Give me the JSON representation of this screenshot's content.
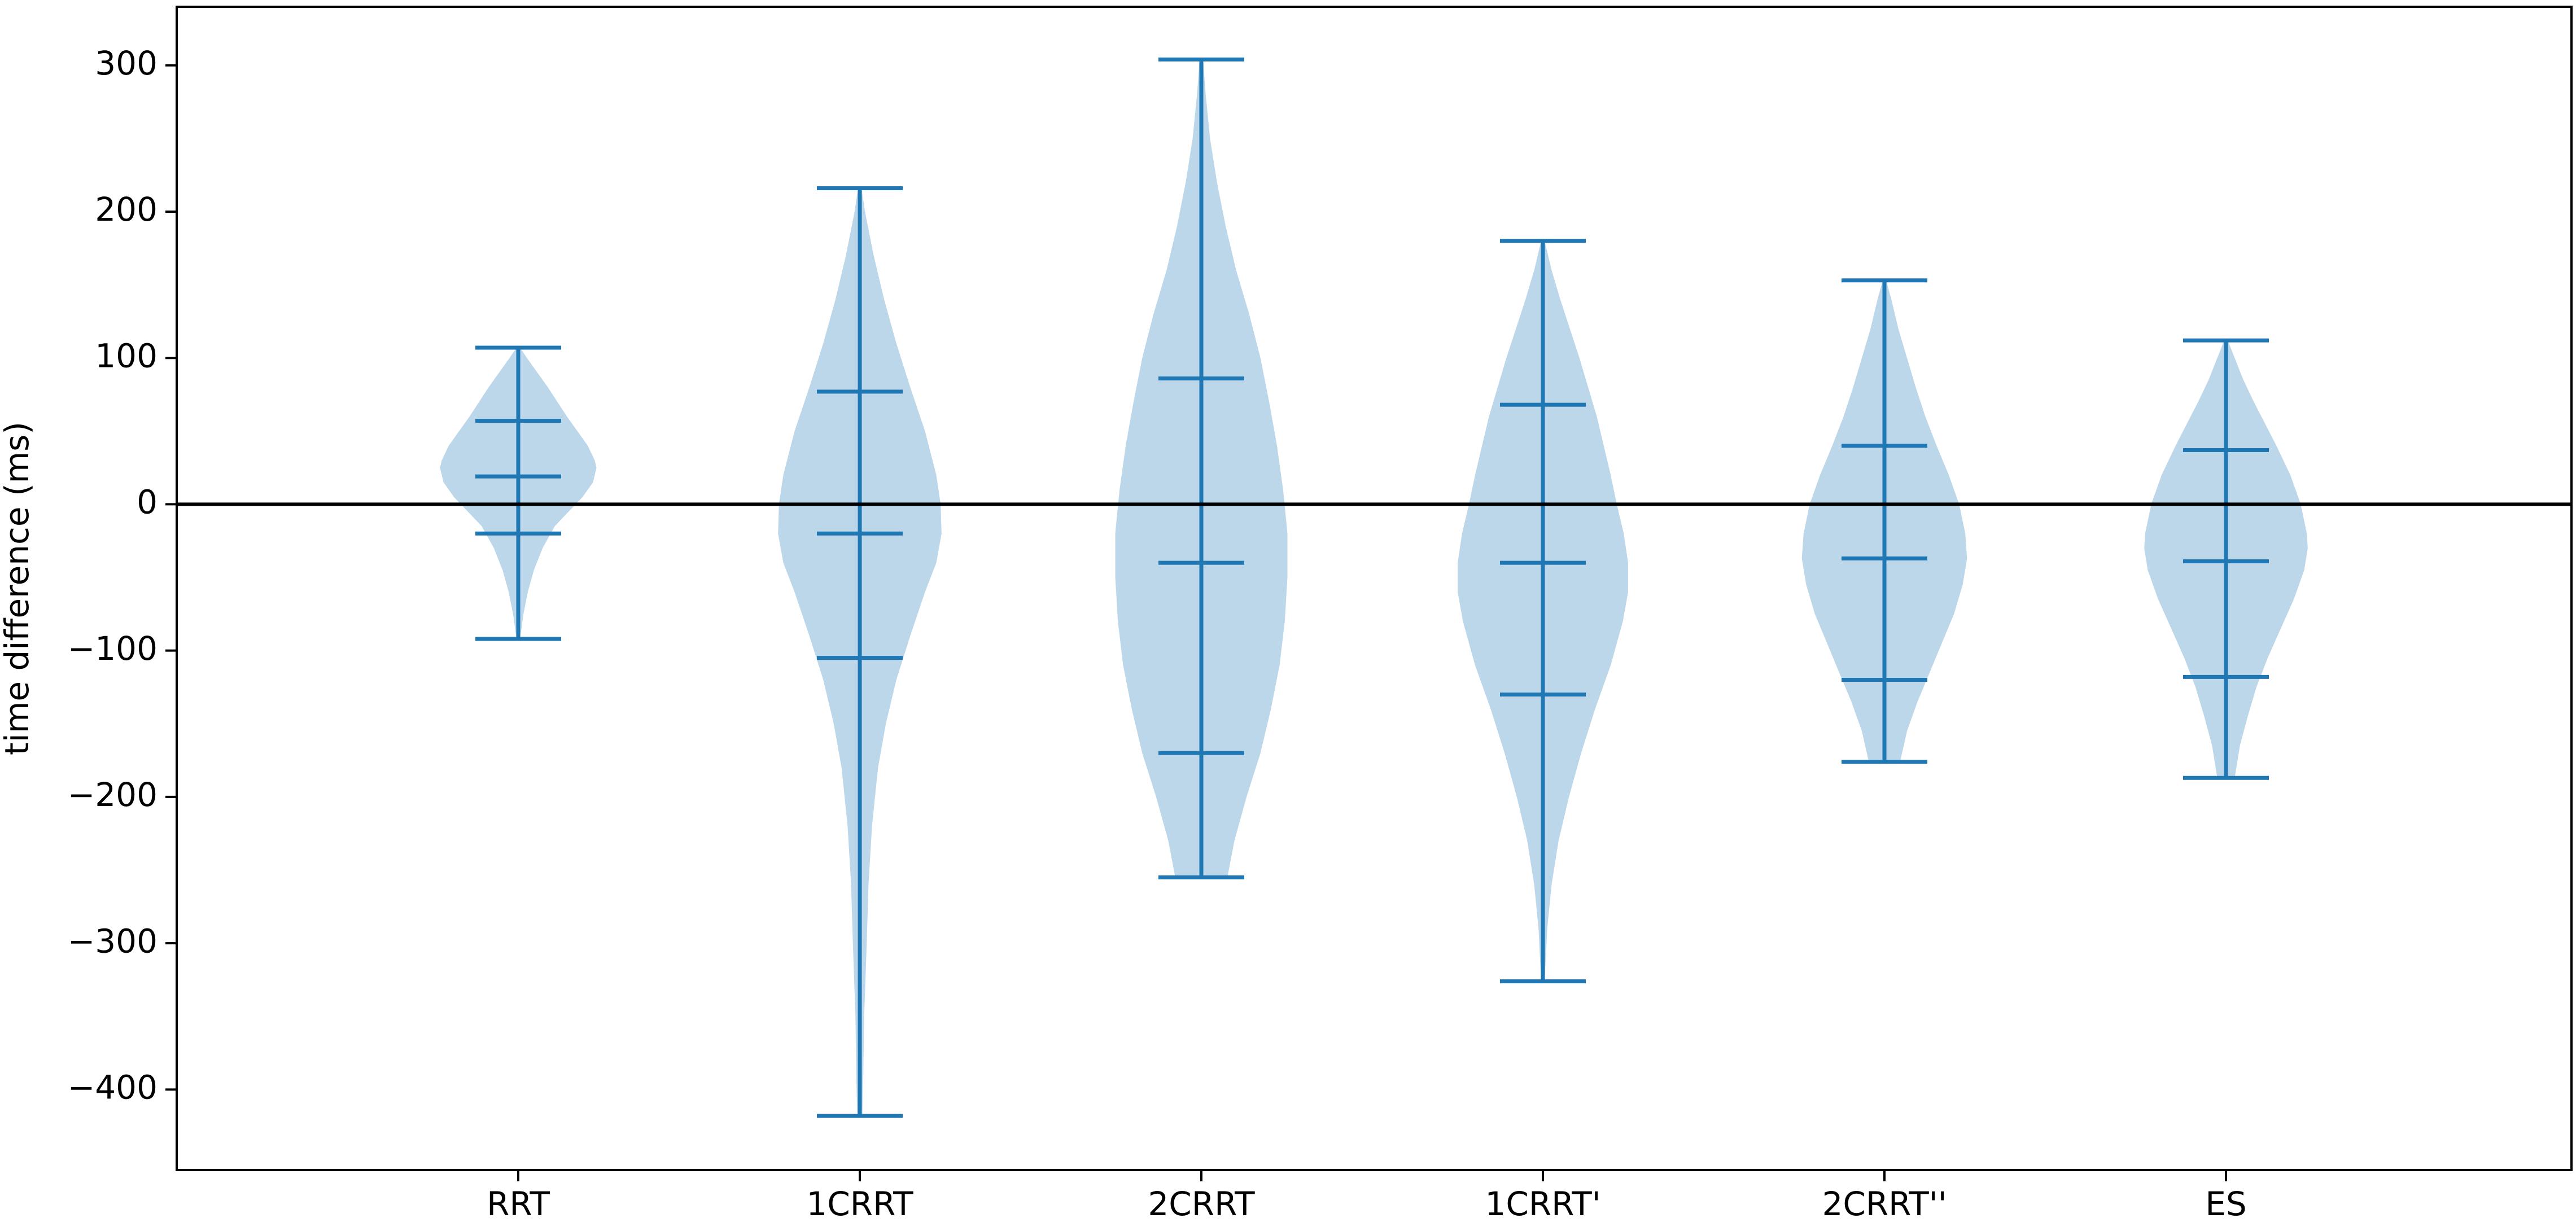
{
  "chart_data": {
    "type": "violin",
    "title": "",
    "xlabel": "",
    "ylabel": "time difference (ms)",
    "ylim": [
      -455,
      340
    ],
    "yticks": [
      300,
      200,
      100,
      0,
      -100,
      -200,
      -300,
      -400
    ],
    "ytick_labels": [
      "300",
      "200",
      "100",
      "0",
      "−100",
      "−200",
      "−300",
      "−400"
    ],
    "reference_line_y": 0,
    "grid": false,
    "categories": [
      "RRT",
      "1CRRT",
      "2CRRT",
      "1CRRT'",
      "2CRRT''",
      "ES"
    ],
    "series": [
      {
        "category": "RRT",
        "min": -92,
        "q1": -20,
        "median": 19,
        "q3": 57,
        "max": 107,
        "density_profile": [
          [
            107,
            0.02
          ],
          [
            100,
            0.1
          ],
          [
            90,
            0.22
          ],
          [
            80,
            0.34
          ],
          [
            70,
            0.45
          ],
          [
            60,
            0.56
          ],
          [
            50,
            0.68
          ],
          [
            40,
            0.8
          ],
          [
            30,
            0.88
          ],
          [
            25,
            0.9
          ],
          [
            15,
            0.86
          ],
          [
            5,
            0.74
          ],
          [
            -5,
            0.58
          ],
          [
            -15,
            0.42
          ],
          [
            -30,
            0.28
          ],
          [
            -45,
            0.18
          ],
          [
            -60,
            0.11
          ],
          [
            -75,
            0.06
          ],
          [
            -92,
            0.02
          ]
        ]
      },
      {
        "category": "1CRRT",
        "min": -418,
        "q1": -105,
        "median": -20,
        "q3": 77,
        "max": 216,
        "density_profile": [
          [
            216,
            0.02
          ],
          [
            200,
            0.06
          ],
          [
            170,
            0.16
          ],
          [
            140,
            0.28
          ],
          [
            110,
            0.42
          ],
          [
            80,
            0.58
          ],
          [
            50,
            0.75
          ],
          [
            20,
            0.88
          ],
          [
            0,
            0.93
          ],
          [
            -20,
            0.94
          ],
          [
            -40,
            0.88
          ],
          [
            -60,
            0.75
          ],
          [
            -90,
            0.58
          ],
          [
            -120,
            0.42
          ],
          [
            -150,
            0.3
          ],
          [
            -180,
            0.21
          ],
          [
            -220,
            0.14
          ],
          [
            -260,
            0.1
          ],
          [
            -300,
            0.08
          ],
          [
            -350,
            0.05
          ],
          [
            -390,
            0.04
          ],
          [
            -418,
            0.03
          ]
        ]
      },
      {
        "category": "2CRRT",
        "min": -255,
        "q1": -170,
        "median": -40,
        "q3": 86,
        "max": 304,
        "density_profile": [
          [
            304,
            0.02
          ],
          [
            280,
            0.05
          ],
          [
            250,
            0.1
          ],
          [
            220,
            0.18
          ],
          [
            190,
            0.28
          ],
          [
            160,
            0.4
          ],
          [
            130,
            0.55
          ],
          [
            100,
            0.68
          ],
          [
            70,
            0.78
          ],
          [
            40,
            0.87
          ],
          [
            10,
            0.94
          ],
          [
            -20,
            0.99
          ],
          [
            -50,
            0.99
          ],
          [
            -80,
            0.96
          ],
          [
            -110,
            0.9
          ],
          [
            -140,
            0.8
          ],
          [
            -170,
            0.68
          ],
          [
            -200,
            0.52
          ],
          [
            -230,
            0.38
          ],
          [
            -255,
            0.3
          ]
        ]
      },
      {
        "category": "1CRRT'",
        "min": -326,
        "q1": -130,
        "median": -40,
        "q3": 68,
        "max": 180,
        "density_profile": [
          [
            180,
            0.02
          ],
          [
            160,
            0.1
          ],
          [
            140,
            0.2
          ],
          [
            120,
            0.31
          ],
          [
            100,
            0.42
          ],
          [
            80,
            0.52
          ],
          [
            60,
            0.62
          ],
          [
            40,
            0.7
          ],
          [
            20,
            0.78
          ],
          [
            0,
            0.85
          ],
          [
            -20,
            0.93
          ],
          [
            -40,
            0.98
          ],
          [
            -60,
            0.98
          ],
          [
            -80,
            0.92
          ],
          [
            -110,
            0.78
          ],
          [
            -140,
            0.6
          ],
          [
            -170,
            0.44
          ],
          [
            -200,
            0.3
          ],
          [
            -230,
            0.18
          ],
          [
            -260,
            0.1
          ],
          [
            -290,
            0.05
          ],
          [
            -326,
            0.02
          ]
        ]
      },
      {
        "category": "2CRRT''",
        "min": -176,
        "q1": -120,
        "median": -37,
        "q3": 40,
        "max": 153,
        "density_profile": [
          [
            153,
            0.02
          ],
          [
            140,
            0.08
          ],
          [
            120,
            0.16
          ],
          [
            100,
            0.26
          ],
          [
            80,
            0.36
          ],
          [
            60,
            0.47
          ],
          [
            40,
            0.6
          ],
          [
            20,
            0.74
          ],
          [
            0,
            0.86
          ],
          [
            -20,
            0.93
          ],
          [
            -37,
            0.95
          ],
          [
            -55,
            0.9
          ],
          [
            -75,
            0.8
          ],
          [
            -95,
            0.66
          ],
          [
            -115,
            0.52
          ],
          [
            -135,
            0.38
          ],
          [
            -155,
            0.26
          ],
          [
            -176,
            0.18
          ]
        ]
      },
      {
        "category": "ES",
        "min": -187,
        "q1": -118,
        "median": -39,
        "q3": 37,
        "max": 112,
        "density_profile": [
          [
            112,
            0.02
          ],
          [
            100,
            0.1
          ],
          [
            85,
            0.2
          ],
          [
            70,
            0.32
          ],
          [
            55,
            0.45
          ],
          [
            40,
            0.58
          ],
          [
            20,
            0.74
          ],
          [
            0,
            0.86
          ],
          [
            -20,
            0.93
          ],
          [
            -30,
            0.94
          ],
          [
            -45,
            0.9
          ],
          [
            -65,
            0.78
          ],
          [
            -85,
            0.63
          ],
          [
            -105,
            0.48
          ],
          [
            -125,
            0.35
          ],
          [
            -145,
            0.25
          ],
          [
            -165,
            0.16
          ],
          [
            -187,
            0.1
          ]
        ]
      }
    ],
    "colors": {
      "violin_fill": "#bcd6ea",
      "violin_line": "#1f77b4",
      "reference_line": "#000000",
      "frame": "#000000"
    }
  }
}
